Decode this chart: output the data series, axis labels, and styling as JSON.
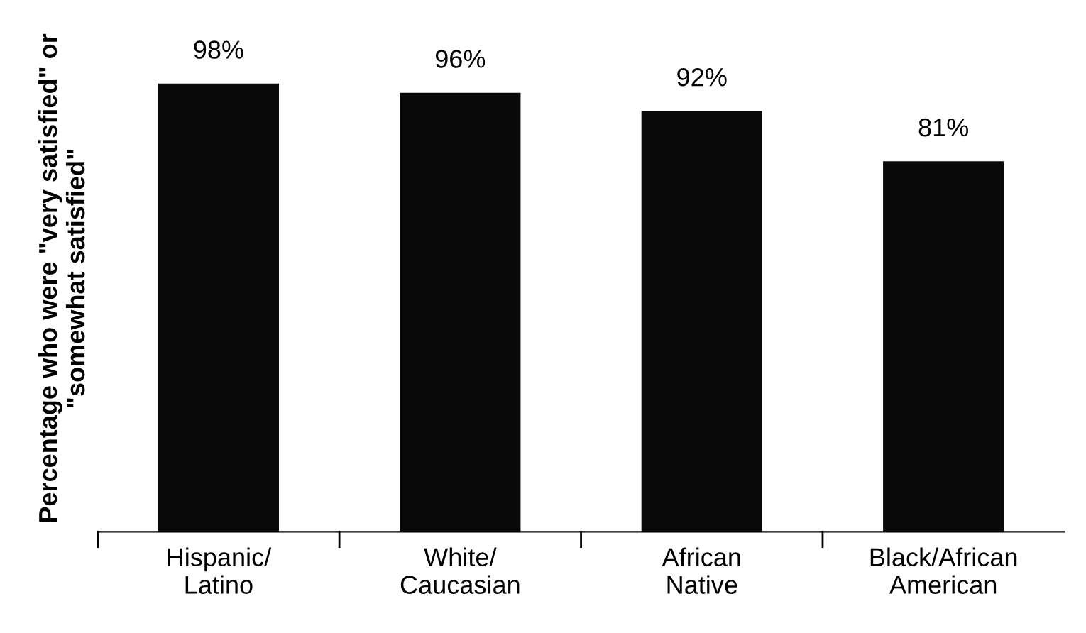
{
  "chart_data": {
    "type": "bar",
    "ylabel": "Percentage who were \"very satisfied\" or\n\"somewhat satisfied\"",
    "categories": [
      "Hispanic/\nLatino",
      "White/\nCaucasian",
      "African\nNative",
      "Black/African\nAmerican"
    ],
    "values": [
      98,
      96,
      92,
      81
    ],
    "color": "#0a0a0a",
    "value_labels": [
      "98%",
      "96%",
      "92%",
      "81%"
    ],
    "grid": false,
    "legend": false
  }
}
